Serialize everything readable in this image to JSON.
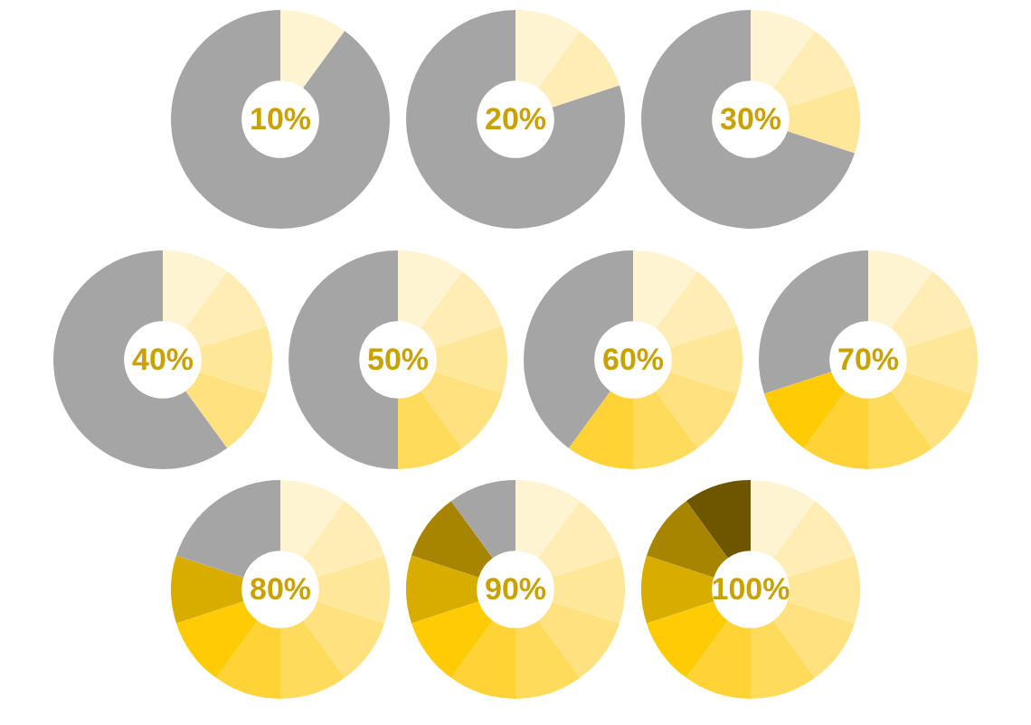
{
  "chart_data": [
    {
      "type": "donut",
      "title": "10%",
      "categories": [
        null,
        null
      ],
      "values": [
        10,
        90
      ],
      "colors": [
        "#fff4d2",
        "#a5a5a5"
      ]
    },
    {
      "type": "donut",
      "title": "20%",
      "categories": [
        null,
        null,
        null
      ],
      "values": [
        10,
        10,
        80
      ],
      "colors": [
        "#fff4d2",
        "#ffedb5",
        "#a5a5a5"
      ]
    },
    {
      "type": "donut",
      "title": "30%",
      "categories": [
        null,
        null,
        null,
        null
      ],
      "values": [
        10,
        10,
        10,
        70
      ],
      "colors": [
        "#fff4d2",
        "#ffedb5",
        "#ffe79a",
        "#a5a5a5"
      ]
    },
    {
      "type": "donut",
      "title": "40%",
      "categories": [
        null,
        null,
        null,
        null,
        null
      ],
      "values": [
        10,
        10,
        10,
        10,
        60
      ],
      "colors": [
        "#fff4d2",
        "#ffedb5",
        "#ffe79a",
        "#ffe27f",
        "#a5a5a5"
      ]
    },
    {
      "type": "donut",
      "title": "50%",
      "categories": [
        null,
        null,
        null,
        null,
        null,
        null
      ],
      "values": [
        10,
        10,
        10,
        10,
        10,
        50
      ],
      "colors": [
        "#fff4d2",
        "#ffedb5",
        "#ffe79a",
        "#ffe27f",
        "#ffdb5c",
        "#a5a5a5"
      ]
    },
    {
      "type": "donut",
      "title": "60%",
      "categories": [
        null,
        null,
        null,
        null,
        null,
        null,
        null
      ],
      "values": [
        10,
        10,
        10,
        10,
        10,
        10,
        40
      ],
      "colors": [
        "#fff4d2",
        "#ffedb5",
        "#ffe79a",
        "#ffe27f",
        "#ffdb5c",
        "#ffd335",
        "#a5a5a5"
      ]
    },
    {
      "type": "donut",
      "title": "70%",
      "categories": [
        null,
        null,
        null,
        null,
        null,
        null,
        null,
        null
      ],
      "values": [
        10,
        10,
        10,
        10,
        10,
        10,
        10,
        30
      ],
      "colors": [
        "#fff4d2",
        "#ffedb5",
        "#ffe79a",
        "#ffe27f",
        "#ffdb5c",
        "#ffd335",
        "#ffcb05",
        "#a5a5a5"
      ]
    },
    {
      "type": "donut",
      "title": "80%",
      "categories": [
        null,
        null,
        null,
        null,
        null,
        null,
        null,
        null,
        null
      ],
      "values": [
        10,
        10,
        10,
        10,
        10,
        10,
        10,
        10,
        20
      ],
      "colors": [
        "#fff4d2",
        "#ffedb5",
        "#ffe79a",
        "#ffe27f",
        "#ffdb5c",
        "#ffd335",
        "#ffcb05",
        "#d9ac00",
        "#a5a5a5"
      ]
    },
    {
      "type": "donut",
      "title": "90%",
      "categories": [
        null,
        null,
        null,
        null,
        null,
        null,
        null,
        null,
        null,
        null
      ],
      "values": [
        10,
        10,
        10,
        10,
        10,
        10,
        10,
        10,
        10,
        10
      ],
      "colors": [
        "#fff4d2",
        "#ffedb5",
        "#ffe79a",
        "#ffe27f",
        "#ffdb5c",
        "#ffd335",
        "#ffcb05",
        "#d9ac00",
        "#a88500",
        "#a5a5a5"
      ]
    },
    {
      "type": "donut",
      "title": "100%",
      "categories": [
        null,
        null,
        null,
        null,
        null,
        null,
        null,
        null,
        null,
        null
      ],
      "values": [
        10,
        10,
        10,
        10,
        10,
        10,
        10,
        10,
        10,
        10
      ],
      "colors": [
        "#fff4d2",
        "#ffedb5",
        "#ffe79a",
        "#ffe27f",
        "#ffdb5c",
        "#ffd335",
        "#ffcb05",
        "#d9ac00",
        "#a88500",
        "#6e5600"
      ]
    }
  ]
}
